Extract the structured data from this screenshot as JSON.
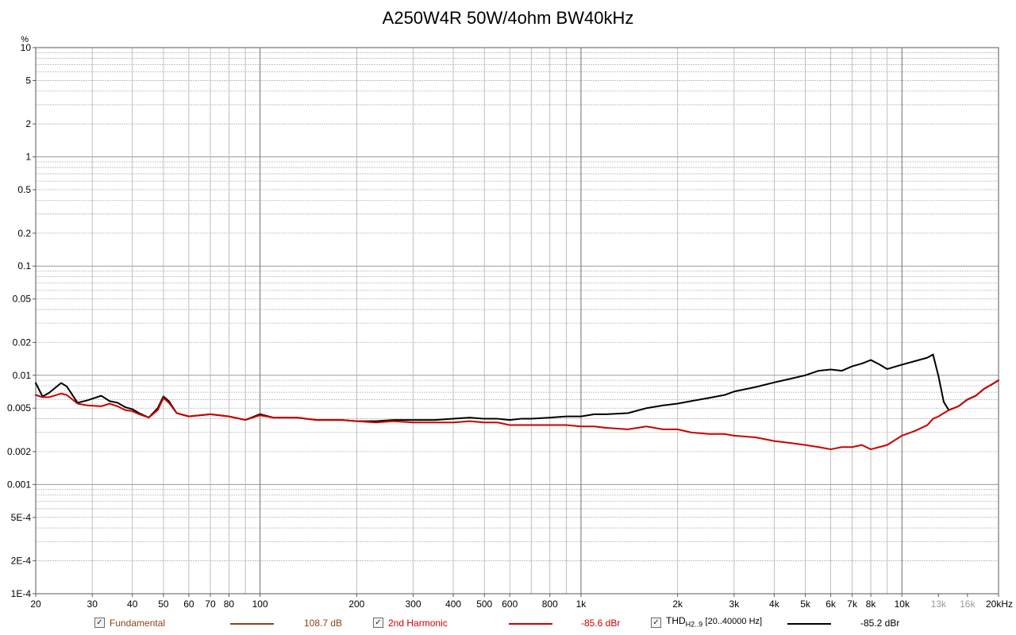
{
  "chart_data": {
    "type": "line",
    "title": "A250W4R 50W/4ohm BW40kHz",
    "ylabel": "%",
    "xscale": "log",
    "yscale": "log",
    "xlim": [
      20,
      20000
    ],
    "ylim": [
      0.0001,
      10
    ],
    "grid": true,
    "legend_position": "bottom",
    "x_ticks": [
      {
        "value": 20,
        "label": "20"
      },
      {
        "value": 30,
        "label": "30"
      },
      {
        "value": 40,
        "label": "40"
      },
      {
        "value": 50,
        "label": "50"
      },
      {
        "value": 60,
        "label": "60"
      },
      {
        "value": 70,
        "label": "70"
      },
      {
        "value": 80,
        "label": "80"
      },
      {
        "value": 100,
        "label": "100"
      },
      {
        "value": 200,
        "label": "200"
      },
      {
        "value": 300,
        "label": "300"
      },
      {
        "value": 400,
        "label": "400"
      },
      {
        "value": 500,
        "label": "500"
      },
      {
        "value": 600,
        "label": "600"
      },
      {
        "value": 800,
        "label": "800"
      },
      {
        "value": 1000,
        "label": "1k"
      },
      {
        "value": 2000,
        "label": "2k"
      },
      {
        "value": 3000,
        "label": "3k"
      },
      {
        "value": 4000,
        "label": "4k"
      },
      {
        "value": 5000,
        "label": "5k"
      },
      {
        "value": 6000,
        "label": "6k"
      },
      {
        "value": 7000,
        "label": "7k"
      },
      {
        "value": 8000,
        "label": "8k"
      },
      {
        "value": 10000,
        "label": "10k"
      },
      {
        "value": 13000,
        "label": "13k"
      },
      {
        "value": 16000,
        "label": "16k"
      },
      {
        "value": 20000,
        "label": "20kHz"
      }
    ],
    "y_ticks": [
      {
        "value": 10,
        "label": "10"
      },
      {
        "value": 5,
        "label": "5"
      },
      {
        "value": 2,
        "label": "2"
      },
      {
        "value": 1,
        "label": "1"
      },
      {
        "value": 0.5,
        "label": "0.5"
      },
      {
        "value": 0.2,
        "label": "0.2"
      },
      {
        "value": 0.1,
        "label": "0.1"
      },
      {
        "value": 0.05,
        "label": "0.05"
      },
      {
        "value": 0.02,
        "label": "0.02"
      },
      {
        "value": 0.01,
        "label": "0.01"
      },
      {
        "value": 0.005,
        "label": "0.005"
      },
      {
        "value": 0.002,
        "label": "0.002"
      },
      {
        "value": 0.001,
        "label": "0.001"
      },
      {
        "value": 0.0005,
        "label": "5E-4"
      },
      {
        "value": 0.0002,
        "label": "2E-4"
      },
      {
        "value": 0.0001,
        "label": "1E-4"
      }
    ],
    "series": [
      {
        "name": "THD",
        "color": "#000000",
        "x": [
          20,
          21,
          22,
          24,
          25,
          27,
          29,
          32,
          34,
          36,
          38,
          40,
          42,
          45,
          48,
          50,
          52,
          55,
          60,
          70,
          80,
          90,
          100,
          110,
          130,
          150,
          180,
          200,
          230,
          260,
          300,
          350,
          400,
          450,
          500,
          550,
          600,
          650,
          700,
          800,
          900,
          1000,
          1100,
          1200,
          1400,
          1600,
          1800,
          2000,
          2200,
          2500,
          2800,
          3000,
          3500,
          4000,
          4500,
          5000,
          5500,
          6000,
          6500,
          7000,
          7500,
          8000,
          8500,
          9000,
          10000,
          11000,
          12000,
          12500,
          13000,
          13500,
          14000,
          15000,
          16000,
          17000,
          18000,
          19000,
          20000
        ],
        "y": [
          0.0085,
          0.0064,
          0.0069,
          0.0085,
          0.0079,
          0.0056,
          0.0059,
          0.0065,
          0.0058,
          0.0056,
          0.0051,
          0.0049,
          0.0045,
          0.0041,
          0.005,
          0.0064,
          0.0058,
          0.0045,
          0.0042,
          0.0044,
          0.0042,
          0.0039,
          0.0044,
          0.0041,
          0.0041,
          0.0039,
          0.0039,
          0.0038,
          0.0038,
          0.0039,
          0.0039,
          0.0039,
          0.004,
          0.0041,
          0.004,
          0.004,
          0.0039,
          0.004,
          0.004,
          0.0041,
          0.0042,
          0.0042,
          0.0044,
          0.0044,
          0.0045,
          0.005,
          0.0053,
          0.0055,
          0.0058,
          0.0062,
          0.0066,
          0.0071,
          0.0078,
          0.0086,
          0.0093,
          0.01,
          0.011,
          0.0113,
          0.011,
          0.0121,
          0.0128,
          0.0138,
          0.0126,
          0.0114,
          0.0125,
          0.0135,
          0.0145,
          0.0155,
          0.0098,
          0.0057,
          0.0048,
          0.0052,
          0.006,
          0.0065,
          0.0075,
          0.0082,
          0.009
        ]
      },
      {
        "name": "2nd Harmonic",
        "color": "#cc0000",
        "x": [
          20,
          21,
          22,
          24,
          25,
          27,
          29,
          32,
          34,
          36,
          38,
          40,
          42,
          45,
          48,
          50,
          52,
          55,
          60,
          70,
          80,
          90,
          100,
          110,
          130,
          150,
          180,
          200,
          230,
          260,
          300,
          350,
          400,
          450,
          500,
          550,
          600,
          650,
          700,
          800,
          900,
          1000,
          1100,
          1200,
          1400,
          1600,
          1800,
          2000,
          2200,
          2500,
          2800,
          3000,
          3500,
          4000,
          4500,
          5000,
          5500,
          6000,
          6500,
          7000,
          7500,
          8000,
          8500,
          9000,
          10000,
          11000,
          12000,
          12500,
          13000,
          13500,
          14000,
          15000,
          16000,
          17000,
          18000,
          19000,
          20000
        ],
        "y": [
          0.0066,
          0.0063,
          0.0063,
          0.0068,
          0.0066,
          0.0055,
          0.0053,
          0.0052,
          0.0055,
          0.0052,
          0.0048,
          0.0047,
          0.0044,
          0.0041,
          0.0048,
          0.0062,
          0.0056,
          0.0045,
          0.0042,
          0.0044,
          0.0042,
          0.0039,
          0.0043,
          0.0041,
          0.0041,
          0.0039,
          0.0039,
          0.0038,
          0.0037,
          0.0038,
          0.0037,
          0.0037,
          0.0037,
          0.0038,
          0.0037,
          0.0037,
          0.0035,
          0.0035,
          0.0035,
          0.0035,
          0.0035,
          0.0034,
          0.0034,
          0.0033,
          0.0032,
          0.0034,
          0.0032,
          0.0032,
          0.003,
          0.0029,
          0.0029,
          0.0028,
          0.0027,
          0.0025,
          0.0024,
          0.0023,
          0.0022,
          0.0021,
          0.0022,
          0.0022,
          0.0023,
          0.0021,
          0.0022,
          0.0023,
          0.0028,
          0.0031,
          0.0035,
          0.004,
          0.0042,
          0.0045,
          0.0048,
          0.0052,
          0.006,
          0.0065,
          0.0075,
          0.0082,
          0.009
        ]
      }
    ]
  },
  "legend": [
    {
      "label": "Fundamental",
      "value": "108.7 dB",
      "color": "#8b4513",
      "label_color": "#8b4513",
      "checked": true
    },
    {
      "label": "2nd Harmonic",
      "value": "-85.6 dBr",
      "color": "#cc0000",
      "label_color": "#cc0000",
      "checked": true
    },
    {
      "label": "THD",
      "label_sub": "H2..9",
      "label_extra": "[20..40000 Hz]",
      "value": "-85.2 dBr",
      "color": "#000000",
      "label_color": "#000000",
      "checked": true
    }
  ],
  "checkbox_mark": "✓"
}
